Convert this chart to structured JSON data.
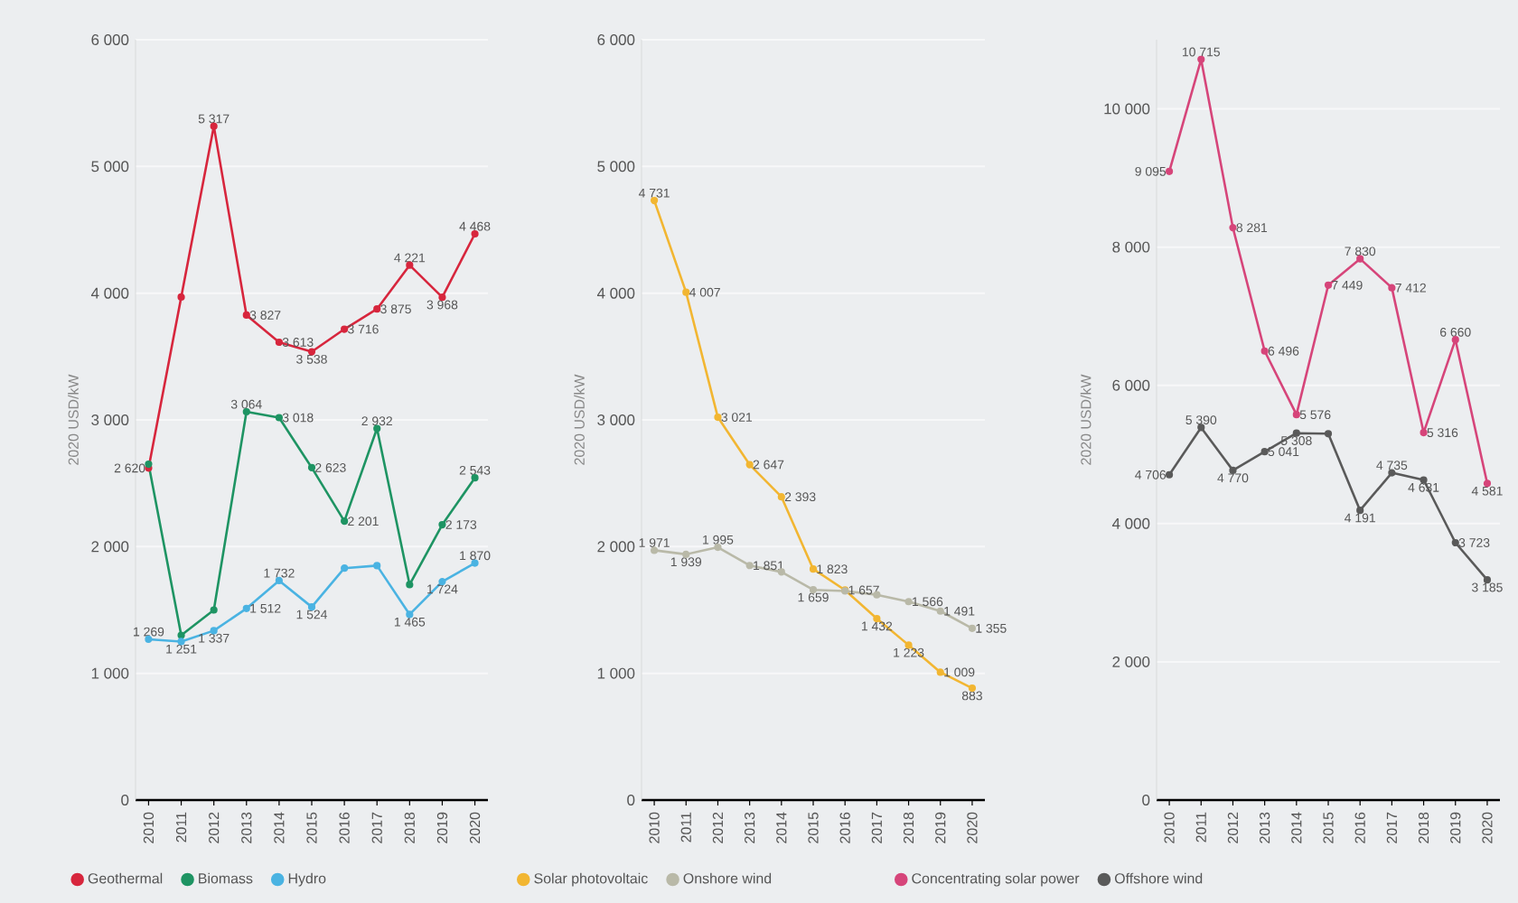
{
  "chart_data": [
    {
      "type": "line",
      "ylabel": "2020 USD/kW",
      "categories": [
        "2010",
        "2011",
        "2012",
        "2013",
        "2014",
        "2015",
        "2016",
        "2017",
        "2018",
        "2019",
        "2020"
      ],
      "ylim": [
        0,
        6000
      ],
      "yticks": [
        0,
        {
          "value": 1000,
          "label": "1 000"
        },
        {
          "value": 2000,
          "label": "2 000"
        },
        {
          "value": 3000,
          "label": "3 000"
        },
        {
          "value": 4000,
          "label": "4 000"
        },
        {
          "value": 5000,
          "label": "5 000"
        },
        {
          "value": 6000,
          "label": "6 000"
        }
      ],
      "grid": "y",
      "legend": "bottom",
      "marker": "circle",
      "line_style": "solid",
      "series": [
        {
          "name": "Geothermal",
          "color": "#d7263d",
          "values": [
            2620,
            3970,
            5317,
            3827,
            3613,
            3538,
            3716,
            3875,
            4221,
            3968,
            4468
          ],
          "value_labels": [
            "2 620",
            null,
            "5 317",
            "3 827",
            "3 613",
            "3 538",
            "3 716",
            "3 875",
            "4 221",
            "3 968",
            "4 468"
          ]
        },
        {
          "name": "Biomass",
          "color": "#1e9463",
          "values": [
            2650,
            1300,
            1500,
            3064,
            3018,
            2623,
            2201,
            2932,
            1700,
            2173,
            2543
          ],
          "value_labels": [
            null,
            null,
            null,
            "3 064",
            "3 018",
            "2 623",
            "2 201",
            "2 932",
            null,
            "2 173",
            "2 543"
          ]
        },
        {
          "name": "Hydro",
          "color": "#4ab3e2",
          "values": [
            1269,
            1251,
            1337,
            1512,
            1732,
            1524,
            1830,
            1850,
            1465,
            1724,
            1870
          ],
          "value_labels": [
            "1 269",
            "1 251",
            "1 337",
            "1 512",
            "1 732",
            "1 524",
            null,
            null,
            "1 465",
            "1 724",
            "1 870"
          ]
        }
      ]
    },
    {
      "type": "line",
      "ylabel": "2020 USD/kW",
      "categories": [
        "2010",
        "2011",
        "2012",
        "2013",
        "2014",
        "2015",
        "2016",
        "2017",
        "2018",
        "2019",
        "2020"
      ],
      "ylim": [
        0,
        6000
      ],
      "yticks": [
        0,
        {
          "value": 1000,
          "label": "1 000"
        },
        {
          "value": 2000,
          "label": "2 000"
        },
        {
          "value": 3000,
          "label": "3 000"
        },
        {
          "value": 4000,
          "label": "4 000"
        },
        {
          "value": 5000,
          "label": "5 000"
        },
        {
          "value": 6000,
          "label": "6 000"
        }
      ],
      "grid": "y",
      "legend": "bottom",
      "marker": "circle",
      "line_style": "solid",
      "series": [
        {
          "name": "Solar photovoltaic",
          "color": "#f2b632",
          "values": [
            4731,
            4007,
            3021,
            2647,
            2393,
            1823,
            1657,
            1432,
            1223,
            1009,
            883
          ],
          "value_labels": [
            "4 731",
            "4 007",
            "3 021",
            "2 647",
            "2 393",
            "1 823",
            "1 657",
            "1 432",
            "1 223",
            "1 009",
            "883"
          ]
        },
        {
          "name": "Onshore wind",
          "color": "#b9b9a8",
          "values": [
            1971,
            1939,
            1995,
            1851,
            1800,
            1659,
            1650,
            1620,
            1566,
            1491,
            1355
          ],
          "value_labels": [
            "1 971",
            "1 939",
            "1 995",
            "1 851",
            null,
            "1 659",
            null,
            null,
            "1 566",
            "1 491",
            "1 355"
          ]
        }
      ]
    },
    {
      "type": "line",
      "ylabel": "2020 USD/kW",
      "categories": [
        "2010",
        "2011",
        "2012",
        "2013",
        "2014",
        "2015",
        "2016",
        "2017",
        "2018",
        "2019",
        "2020"
      ],
      "ylim": [
        0,
        11000
      ],
      "yticks": [
        0,
        {
          "value": 2000,
          "label": "2 000"
        },
        {
          "value": 4000,
          "label": "4 000"
        },
        {
          "value": 6000,
          "label": "6 000"
        },
        {
          "value": 8000,
          "label": "8 000"
        },
        {
          "value": 10000,
          "label": "10 000"
        }
      ],
      "grid": "y",
      "legend": "bottom",
      "marker": "circle",
      "line_style": "solid",
      "series": [
        {
          "name": "Concentrating solar power",
          "color": "#d6457a",
          "values": [
            9095,
            10715,
            8281,
            6496,
            5576,
            7449,
            7830,
            7412,
            5316,
            6660,
            4581
          ],
          "value_labels": [
            "9 095",
            "10 715",
            "8 281",
            "6 496",
            "5 576",
            "7 449",
            "7 830",
            "7 412",
            "5 316",
            "6 660",
            "4 581"
          ]
        },
        {
          "name": "Offshore wind",
          "color": "#5a5a5a",
          "values": [
            4706,
            5390,
            4770,
            5041,
            5308,
            5300,
            4191,
            4735,
            4631,
            3723,
            3185
          ],
          "value_labels": [
            "4 706",
            "5 390",
            "4 770",
            "5 041",
            "5 308",
            null,
            "4 191",
            "4 735",
            "4 631",
            "3 723",
            "3 185"
          ]
        }
      ]
    }
  ]
}
